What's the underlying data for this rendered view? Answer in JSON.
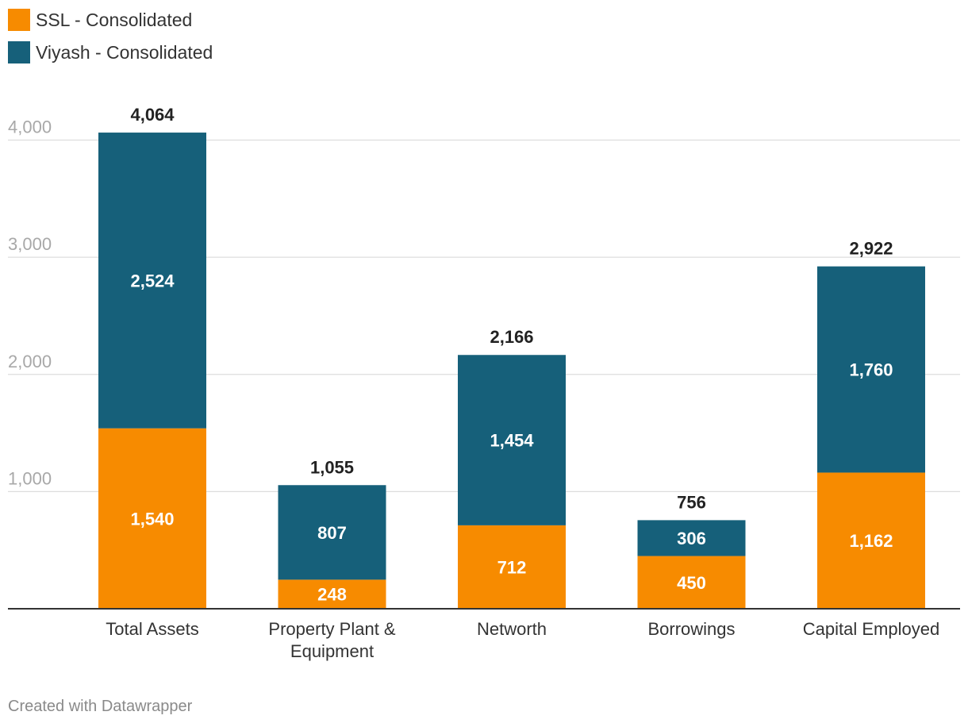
{
  "colors": {
    "ssl": "#f78b00",
    "viyash": "#16607a",
    "grid": "#dddddd",
    "axis": "#333333"
  },
  "footer": "Created with Datawrapper",
  "chart_data": {
    "type": "bar",
    "stacked": true,
    "title": "",
    "xlabel": "",
    "ylabel": "",
    "ylim": [
      0,
      4000
    ],
    "yticks": [
      1000,
      2000,
      3000,
      4000
    ],
    "ytick_labels": [
      "1,000",
      "2,000",
      "3,000",
      "4,000"
    ],
    "grid": true,
    "legend_position": "top-left",
    "categories": [
      [
        "Total Assets"
      ],
      [
        "Property Plant &",
        "Equipment"
      ],
      [
        "Networth"
      ],
      [
        "Borrowings"
      ],
      [
        "Capital Employed"
      ]
    ],
    "series": [
      {
        "name": "SSL - Consolidated",
        "color": "#f78b00",
        "values": [
          1540,
          248,
          712,
          450,
          1162
        ],
        "labels": [
          "1,540",
          "248",
          "712",
          "450",
          "1,162"
        ]
      },
      {
        "name": "Viyash - Consolidated",
        "color": "#16607a",
        "values": [
          2524,
          807,
          1454,
          306,
          1760
        ],
        "labels": [
          "2,524",
          "807",
          "1,454",
          "306",
          "1,760"
        ]
      }
    ],
    "totals": [
      4064,
      1055,
      2166,
      756,
      2922
    ],
    "total_labels": [
      "4,064",
      "1,055",
      "2,166",
      "756",
      "2,922"
    ]
  }
}
